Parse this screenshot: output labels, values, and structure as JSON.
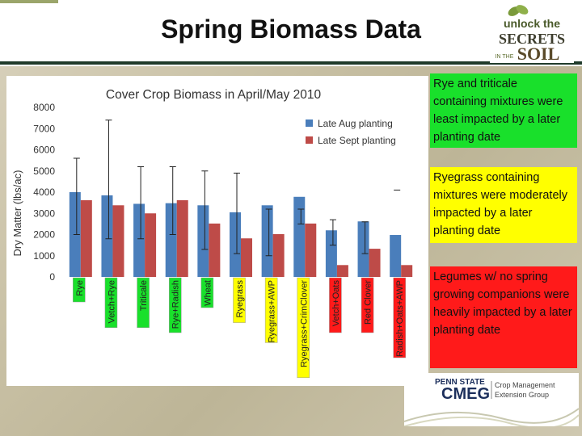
{
  "slide": {
    "title": "Spring Biomass Data",
    "notes": [
      {
        "text": "Rye and triticale containing mixtures were least impacted by a later planting date",
        "color": "#19e02b"
      },
      {
        "text": "Ryegrass containing mixtures were moderately  impacted by a later planting date",
        "color": "#ffff00"
      },
      {
        "text": "Legumes w/ no spring growing companions were heavily impacted by a later planting date",
        "color": "#ff1a1a"
      }
    ],
    "logo_top": {
      "line1": "unlock the",
      "line2": "SECRETS",
      "line3": "IN THE",
      "line4": "SOIL"
    },
    "logo_bottom": {
      "org": "PENN STATE",
      "name": "CMEG",
      "line1": "Crop Management",
      "line2": "Extension Group"
    }
  },
  "chart_data": {
    "type": "bar",
    "title": "Cover Crop Biomass in April/May 2010",
    "ylabel": "Dry Matter (lbs/ac)",
    "xlabel": "",
    "ylim": [
      0,
      8000
    ],
    "yticks": [
      0,
      1000,
      2000,
      3000,
      4000,
      5000,
      6000,
      7000,
      8000
    ],
    "legend_position": "top-right",
    "categories": [
      "Rye",
      "Vetch+Rye",
      "Triticale",
      "Rye+Radish",
      "Wheat",
      "Ryegrass",
      "Ryegrass+AWP",
      "Ryegrass+CrimClover",
      "Vetch+Oats",
      "Red Clover",
      "Radish+Oats+AWP"
    ],
    "category_colors": [
      "#19e02b",
      "#19e02b",
      "#19e02b",
      "#19e02b",
      "#19e02b",
      "#ffff00",
      "#ffff00",
      "#ffff00",
      "#ff1a1a",
      "#ff1a1a",
      "#ff1a1a"
    ],
    "series": [
      {
        "name": "Late Aug planting",
        "color": "#4a7ebb",
        "values": [
          4000,
          3850,
          3450,
          3480,
          3380,
          3050,
          3380,
          3780,
          2200,
          2620,
          1980
        ]
      },
      {
        "name": "Late Sept planting",
        "color": "#be4b48",
        "values": [
          3620,
          3380,
          3000,
          3620,
          2520,
          1820,
          2020,
          2520,
          560,
          1330,
          560
        ]
      }
    ],
    "error_bars": [
      {
        "low": 2000,
        "high": 5600
      },
      {
        "low": 1800,
        "high": 7400
      },
      {
        "low": 1800,
        "high": 5200
      },
      {
        "low": 2000,
        "high": 5200
      },
      {
        "low": 1300,
        "high": 5000
      },
      {
        "low": 1100,
        "high": 4900
      },
      {
        "low": 1000,
        "high": 3200
      },
      {
        "low": 2500,
        "high": 3200
      },
      {
        "low": 1500,
        "high": 2700
      },
      {
        "low": 1100,
        "high": 2600
      },
      {
        "low": 4100,
        "high": 4100
      }
    ]
  }
}
